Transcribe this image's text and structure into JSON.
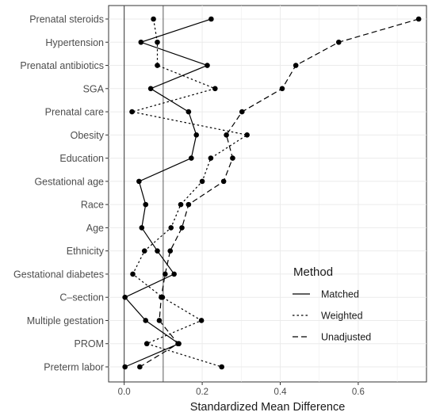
{
  "chart_data": {
    "type": "scatter",
    "title": "",
    "xlabel": "Standardized Mean Difference",
    "ylabel": "",
    "xlim": [
      -0.04,
      0.775
    ],
    "xticks": [
      {
        "value": 0.0,
        "label": "0.0"
      },
      {
        "value": 0.2,
        "label": "0.2"
      },
      {
        "value": 0.4,
        "label": "0.4"
      },
      {
        "value": 0.6,
        "label": "0.6"
      }
    ],
    "reference_line": 0.1,
    "grid": true,
    "legend": {
      "title": "Method",
      "position": "bottom-right"
    },
    "categories": [
      "Prenatal steroids",
      "Hypertension",
      "Prenatal antibiotics",
      "SGA",
      "Prenatal care",
      "Obesity",
      "Education",
      "Gestational age",
      "Race",
      "Age",
      "Ethnicity",
      "Gestational diabetes",
      "C–section",
      "Multiple gestation",
      "PROM",
      "Preterm labor"
    ],
    "series": [
      {
        "name": "Matched",
        "line_style": "solid",
        "values": [
          0.223,
          0.043,
          0.213,
          0.068,
          0.165,
          0.185,
          0.172,
          0.038,
          0.055,
          0.045,
          0.085,
          0.128,
          0.002,
          0.055,
          0.14,
          0.002
        ]
      },
      {
        "name": "Weighted",
        "line_style": "dotted",
        "values": [
          0.075,
          0.085,
          0.085,
          0.233,
          0.02,
          0.315,
          0.222,
          0.2,
          0.145,
          0.12,
          0.052,
          0.022,
          0.098,
          0.198,
          0.058,
          0.25
        ]
      },
      {
        "name": "Unadjusted",
        "line_style": "dashed",
        "values": [
          0.755,
          0.55,
          0.44,
          0.405,
          0.302,
          0.262,
          0.278,
          0.255,
          0.165,
          0.148,
          0.118,
          0.105,
          0.095,
          0.09,
          0.138,
          0.04
        ]
      }
    ]
  }
}
